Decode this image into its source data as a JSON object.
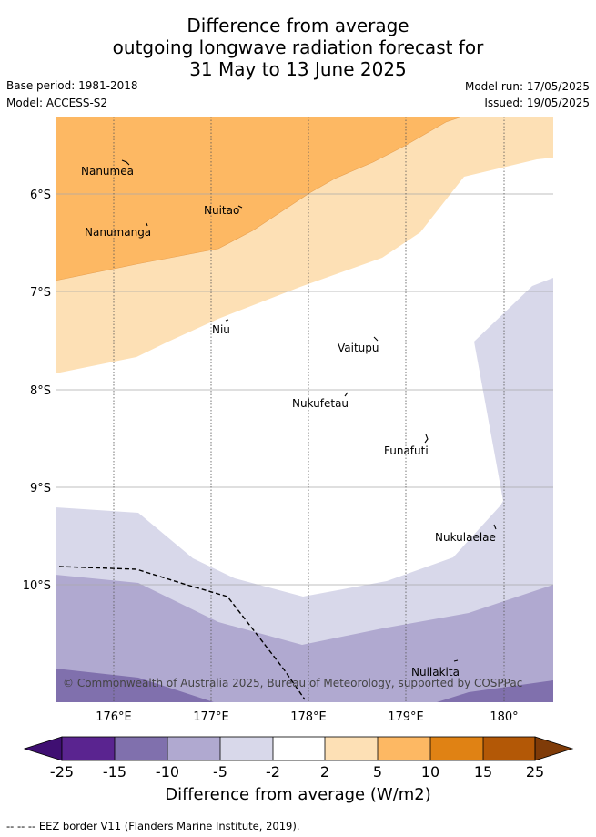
{
  "title_lines": [
    "Difference from average",
    "outgoing longwave radiation forecast for",
    "31 May to 13 June 2025"
  ],
  "base_period": "Base period: 1981-2018",
  "model": "Model: ACCESS-S2",
  "model_run": "Model run: 17/05/2025",
  "issued": "Issued: 19/05/2025",
  "copyright": "© Commonwealth of Australia 2025, Bureau of Meteorology, supported by COSPPac",
  "lat_labels": [
    "6°S",
    "7°S",
    "8°S",
    "9°S",
    "10°S"
  ],
  "lon_labels": [
    "176°E",
    "177°E",
    "178°E",
    "179°E",
    "180°"
  ],
  "islands": [
    {
      "name": "Nanumea"
    },
    {
      "name": "Nuitao"
    },
    {
      "name": "Nanumanga"
    },
    {
      "name": "Niu"
    },
    {
      "name": "Vaitupu"
    },
    {
      "name": "Nukufetau"
    },
    {
      "name": "Funafuti"
    },
    {
      "name": "Nukulaelae"
    },
    {
      "name": "Nuilakita"
    }
  ],
  "colorbar": {
    "ticks": [
      "-25",
      "-15",
      "-10",
      "-5",
      "-2",
      "2",
      "5",
      "10",
      "15",
      "25"
    ],
    "colors": [
      "#3f0f72",
      "#5a2490",
      "#8070ad",
      "#b0a9d0",
      "#d8d8ea",
      "#ffffff",
      "#fde0b5",
      "#fdb863",
      "#e08214",
      "#b35806",
      "#7f3b08"
    ],
    "label": "Difference from average (W/m2)"
  },
  "legend_footer": "--  --  -- EEZ border V11 (Flanders Marine Institute, 2019)."
}
